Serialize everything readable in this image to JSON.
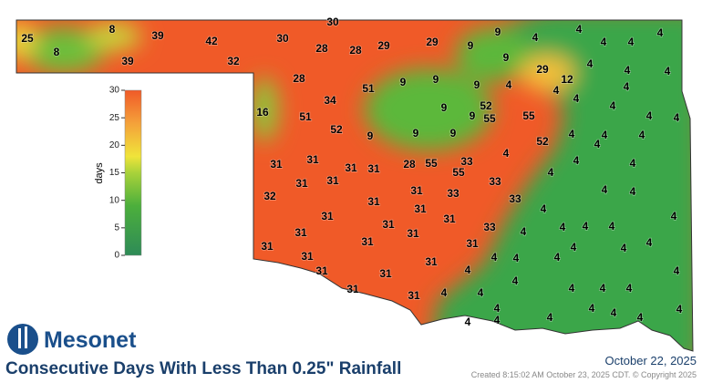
{
  "header": {
    "logo_text": "Mesonet",
    "title": "Consecutive Days With Less Than 0.25\" Rainfall",
    "date": "October 22, 2025",
    "created": "Created 8:15:02 AM October 23, 2025 CDT. © Copyright 2025"
  },
  "legend": {
    "label": "days",
    "range": [
      0,
      30
    ],
    "ticks": [
      0,
      5,
      10,
      15,
      20,
      25,
      30
    ]
  },
  "counties": {
    "values": [
      25,
      8,
      8,
      39,
      39,
      42,
      32,
      30,
      30,
      28,
      28,
      29,
      29,
      9,
      9,
      4,
      4,
      4,
      4,
      4,
      9,
      29,
      12,
      4,
      4,
      4,
      28,
      9,
      9,
      51,
      9,
      4,
      4,
      4,
      34,
      16,
      51,
      9,
      52,
      9,
      55,
      55,
      4,
      4,
      4,
      4,
      52,
      9,
      9,
      9,
      4,
      4,
      4,
      52,
      4,
      31,
      31,
      31,
      31,
      28,
      55,
      33,
      4,
      4,
      4,
      55,
      31,
      31,
      33,
      4,
      32,
      31,
      33,
      31,
      33,
      4,
      4,
      31,
      4,
      31,
      31,
      31,
      33,
      4,
      4,
      4,
      4,
      31,
      31,
      31,
      31,
      31,
      4,
      4,
      4,
      4,
      31,
      4,
      4,
      4,
      31,
      31,
      31,
      4,
      4,
      31,
      31,
      4,
      4,
      4,
      4,
      4,
      4,
      4,
      4,
      4,
      4,
      4,
      4,
      4,
      4
    ]
  }
}
